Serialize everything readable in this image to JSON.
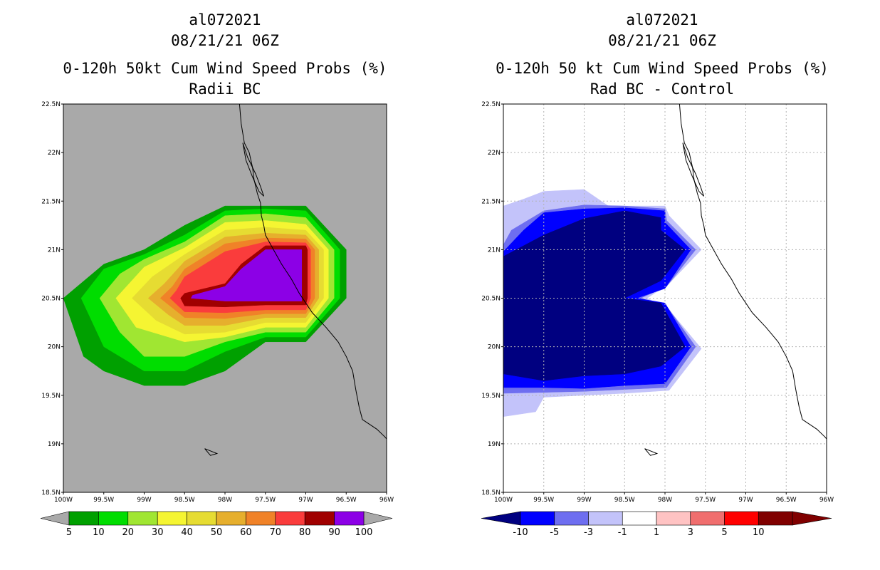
{
  "colors": {
    "land_background": "#a9a9a9",
    "coast": "#000000",
    "grid": "#b4b4b4",
    "prob_scale": [
      "#a9a9a9",
      "#00a000",
      "#00dd00",
      "#a0e632",
      "#f5f532",
      "#e6dc32",
      "#e6af2d",
      "#f08228",
      "#fa3c3c",
      "#a00000",
      "#8c00e6",
      "#a9a9a9"
    ],
    "diff_scale": [
      "#000080",
      "#0000ff",
      "#6e6ef0",
      "#c3c3fa",
      "#ffffff",
      "#ffc3c3",
      "#f06e6e",
      "#ff0000",
      "#800000"
    ]
  },
  "left_panel": {
    "storm_id": "al072021",
    "datetime": "08/21/21 06Z",
    "title": "0-120h 50kt Cum Wind Speed Probs (%)",
    "subtitle": "Radii BC"
  },
  "right_panel": {
    "storm_id": "al072021",
    "datetime": "08/21/21 06Z",
    "title": "0-120h 50 kt Cum Wind Speed Probs (%)",
    "subtitle": "Rad BC - Control"
  },
  "chart_data": [
    {
      "type": "heatmap",
      "title": "0-120h 50kt Cum Wind Speed Probs (%)",
      "subtitle": "Radii BC",
      "xlabel": "",
      "ylabel": "",
      "xlim": [
        -100,
        -96
      ],
      "ylim": [
        18.5,
        22.5
      ],
      "x_ticks": [
        "100W",
        "99.5W",
        "99W",
        "98.5W",
        "98W",
        "97.5W",
        "97W",
        "96.5W",
        "96W"
      ],
      "y_ticks": [
        "18.5N",
        "19N",
        "19.5N",
        "20N",
        "20.5N",
        "21N",
        "21.5N",
        "22N",
        "22.5N"
      ],
      "grid": false,
      "colorbar_levels": [
        5,
        10,
        20,
        30,
        40,
        50,
        60,
        70,
        80,
        90,
        100
      ],
      "colorbar_labels": [
        "5",
        "10",
        "20",
        "30",
        "40",
        "50",
        "60",
        "70",
        "80",
        "90",
        "100"
      ],
      "contour_bands": [
        {
          "min": 5,
          "polygon": [
            [
              -100.0,
              20.5
            ],
            [
              -99.75,
              19.9
            ],
            [
              -99.5,
              19.75
            ],
            [
              -99.0,
              19.6
            ],
            [
              -98.5,
              19.6
            ],
            [
              -98.0,
              19.75
            ],
            [
              -97.5,
              20.05
            ],
            [
              -97.0,
              20.05
            ],
            [
              -96.5,
              20.5
            ],
            [
              -96.5,
              21.0
            ],
            [
              -97.0,
              21.45
            ],
            [
              -97.5,
              21.45
            ],
            [
              -98.0,
              21.45
            ],
            [
              -98.5,
              21.25
            ],
            [
              -99.0,
              21.0
            ],
            [
              -99.5,
              20.85
            ]
          ]
        },
        {
          "min": 10,
          "polygon": [
            [
              -99.78,
              20.5
            ],
            [
              -99.5,
              20.0
            ],
            [
              -99.0,
              19.75
            ],
            [
              -98.5,
              19.75
            ],
            [
              -98.0,
              19.95
            ],
            [
              -97.5,
              20.1
            ],
            [
              -97.0,
              20.1
            ],
            [
              -96.58,
              20.5
            ],
            [
              -96.58,
              21.0
            ],
            [
              -97.0,
              21.4
            ],
            [
              -97.5,
              21.42
            ],
            [
              -98.0,
              21.4
            ],
            [
              -98.5,
              21.15
            ],
            [
              -99.0,
              20.95
            ],
            [
              -99.5,
              20.8
            ]
          ]
        },
        {
          "min": 20,
          "polygon": [
            [
              -99.55,
              20.5
            ],
            [
              -99.3,
              20.15
            ],
            [
              -99.0,
              19.9
            ],
            [
              -98.5,
              19.9
            ],
            [
              -98.0,
              20.05
            ],
            [
              -97.5,
              20.15
            ],
            [
              -97.0,
              20.15
            ],
            [
              -96.65,
              20.5
            ],
            [
              -96.65,
              21.0
            ],
            [
              -97.0,
              21.33
            ],
            [
              -97.5,
              21.37
            ],
            [
              -98.0,
              21.35
            ],
            [
              -98.5,
              21.08
            ],
            [
              -99.0,
              20.9
            ],
            [
              -99.3,
              20.75
            ]
          ]
        },
        {
          "min": 30,
          "polygon": [
            [
              -99.35,
              20.5
            ],
            [
              -99.1,
              20.2
            ],
            [
              -98.5,
              20.05
            ],
            [
              -98.0,
              20.1
            ],
            [
              -97.5,
              20.2
            ],
            [
              -97.0,
              20.2
            ],
            [
              -96.72,
              20.5
            ],
            [
              -96.72,
              21.0
            ],
            [
              -97.0,
              21.26
            ],
            [
              -97.5,
              21.3
            ],
            [
              -98.0,
              21.28
            ],
            [
              -98.5,
              21.02
            ],
            [
              -99.0,
              20.82
            ]
          ]
        },
        {
          "min": 40,
          "polygon": [
            [
              -99.15,
              20.5
            ],
            [
              -98.85,
              20.27
            ],
            [
              -98.5,
              20.13
            ],
            [
              -98.0,
              20.15
            ],
            [
              -97.5,
              20.25
            ],
            [
              -97.0,
              20.25
            ],
            [
              -96.78,
              20.5
            ],
            [
              -96.78,
              21.0
            ],
            [
              -97.0,
              21.2
            ],
            [
              -97.5,
              21.23
            ],
            [
              -98.0,
              21.2
            ],
            [
              -98.5,
              20.95
            ],
            [
              -98.9,
              20.72
            ]
          ]
        },
        {
          "min": 50,
          "polygon": [
            [
              -98.95,
              20.5
            ],
            [
              -98.7,
              20.33
            ],
            [
              -98.5,
              20.22
            ],
            [
              -98.0,
              20.22
            ],
            [
              -97.5,
              20.3
            ],
            [
              -97.0,
              20.3
            ],
            [
              -96.84,
              20.5
            ],
            [
              -96.84,
              21.0
            ],
            [
              -97.0,
              21.15
            ],
            [
              -97.5,
              21.17
            ],
            [
              -98.0,
              21.13
            ],
            [
              -98.5,
              20.88
            ],
            [
              -98.75,
              20.65
            ]
          ]
        },
        {
          "min": 60,
          "polygon": [
            [
              -98.8,
              20.5
            ],
            [
              -98.5,
              20.3
            ],
            [
              -98.0,
              20.29
            ],
            [
              -97.5,
              20.34
            ],
            [
              -97.0,
              20.34
            ],
            [
              -96.89,
              20.5
            ],
            [
              -96.89,
              21.0
            ],
            [
              -97.0,
              21.11
            ],
            [
              -97.5,
              21.12
            ],
            [
              -98.0,
              21.06
            ],
            [
              -98.5,
              20.8
            ],
            [
              -98.65,
              20.62
            ]
          ]
        },
        {
          "min": 70,
          "polygon": [
            [
              -98.68,
              20.5
            ],
            [
              -98.5,
              20.36
            ],
            [
              -98.0,
              20.35
            ],
            [
              -97.5,
              20.38
            ],
            [
              -97.0,
              20.38
            ],
            [
              -96.94,
              20.5
            ],
            [
              -96.94,
              21.0
            ],
            [
              -97.0,
              21.07
            ],
            [
              -97.5,
              21.08
            ],
            [
              -98.0,
              20.98
            ],
            [
              -98.5,
              20.72
            ],
            [
              -98.6,
              20.58
            ]
          ]
        },
        {
          "min": 80,
          "polygon": [
            [
              -98.55,
              20.5
            ],
            [
              -98.5,
              20.42
            ],
            [
              -98.0,
              20.41
            ],
            [
              -97.5,
              20.43
            ],
            [
              -97.0,
              20.43
            ],
            [
              -96.98,
              20.5
            ],
            [
              -96.98,
              21.0
            ],
            [
              -97.0,
              21.04
            ],
            [
              -97.5,
              21.04
            ],
            [
              -97.8,
              20.85
            ],
            [
              -98.0,
              20.65
            ],
            [
              -98.5,
              20.55
            ]
          ]
        },
        {
          "min": 90,
          "polygon": [
            [
              -98.42,
              20.5
            ],
            [
              -98.0,
              20.47
            ],
            [
              -97.5,
              20.47
            ],
            [
              -97.05,
              20.47
            ],
            [
              -97.05,
              21.0
            ],
            [
              -97.5,
              21.0
            ],
            [
              -97.8,
              20.8
            ],
            [
              -98.0,
              20.62
            ],
            [
              -98.4,
              20.53
            ]
          ]
        }
      ]
    },
    {
      "type": "heatmap",
      "title": "0-120h 50 kt Cum Wind Speed Probs (%)",
      "subtitle": "Rad BC - Control",
      "xlabel": "",
      "ylabel": "",
      "xlim": [
        -100,
        -96
      ],
      "ylim": [
        18.5,
        22.5
      ],
      "x_ticks": [
        "100W",
        "99.5W",
        "99W",
        "98.5W",
        "98W",
        "97.5W",
        "97W",
        "96.5W",
        "96W"
      ],
      "y_ticks": [
        "18.5N",
        "19N",
        "19.5N",
        "20N",
        "20.5N",
        "21N",
        "21.5N",
        "22N",
        "22.5N"
      ],
      "grid": true,
      "colorbar_levels": [
        -10,
        -5,
        -3,
        -1,
        1,
        3,
        5,
        10
      ],
      "colorbar_labels": [
        "-10",
        "-5",
        "-3",
        "-1",
        "1",
        "3",
        "5",
        "10"
      ],
      "contour_bands": [
        {
          "max": -1,
          "polygon": [
            [
              -100.0,
              21.45
            ],
            [
              -99.75,
              21.52
            ],
            [
              -99.5,
              21.6
            ],
            [
              -99.0,
              21.62
            ],
            [
              -98.7,
              21.45
            ],
            [
              -98.5,
              21.45
            ],
            [
              -98.0,
              21.45
            ],
            [
              -97.95,
              21.35
            ],
            [
              -97.55,
              21.0
            ],
            [
              -97.95,
              20.65
            ],
            [
              -98.22,
              20.5
            ],
            [
              -97.95,
              20.38
            ],
            [
              -97.55,
              19.98
            ],
            [
              -97.95,
              19.55
            ],
            [
              -98.5,
              19.52
            ],
            [
              -99.0,
              19.5
            ],
            [
              -99.5,
              19.48
            ],
            [
              -99.6,
              19.33
            ],
            [
              -100.0,
              19.28
            ]
          ]
        },
        {
          "max": -3,
          "polygon": [
            [
              -100.0,
              21.05
            ],
            [
              -99.9,
              21.2
            ],
            [
              -99.5,
              21.4
            ],
            [
              -99.0,
              21.46
            ],
            [
              -98.5,
              21.45
            ],
            [
              -98.0,
              21.42
            ],
            [
              -97.98,
              21.3
            ],
            [
              -97.62,
              21.0
            ],
            [
              -97.98,
              20.62
            ],
            [
              -98.3,
              20.5
            ],
            [
              -97.98,
              20.42
            ],
            [
              -97.62,
              20.0
            ],
            [
              -97.98,
              19.58
            ],
            [
              -98.5,
              19.56
            ],
            [
              -99.0,
              19.54
            ],
            [
              -99.5,
              19.53
            ],
            [
              -100.0,
              19.52
            ]
          ]
        },
        {
          "max": -5,
          "polygon": [
            [
              -100.0,
              20.98
            ],
            [
              -99.75,
              21.2
            ],
            [
              -99.5,
              21.38
            ],
            [
              -99.0,
              21.42
            ],
            [
              -98.5,
              21.43
            ],
            [
              -98.0,
              21.4
            ],
            [
              -98.0,
              21.28
            ],
            [
              -97.68,
              21.0
            ],
            [
              -98.0,
              20.6
            ],
            [
              -98.35,
              20.5
            ],
            [
              -98.0,
              20.45
            ],
            [
              -97.68,
              20.0
            ],
            [
              -98.0,
              19.62
            ],
            [
              -98.5,
              19.6
            ],
            [
              -99.0,
              19.57
            ],
            [
              -99.5,
              19.58
            ],
            [
              -100.0,
              19.58
            ]
          ]
        },
        {
          "max": -10,
          "polygon": [
            [
              -100.0,
              20.93
            ],
            [
              -99.5,
              21.15
            ],
            [
              -99.0,
              21.32
            ],
            [
              -98.5,
              21.4
            ],
            [
              -98.05,
              21.33
            ],
            [
              -98.05,
              21.2
            ],
            [
              -97.75,
              21.0
            ],
            [
              -98.05,
              20.68
            ],
            [
              -98.5,
              20.5
            ],
            [
              -98.05,
              20.45
            ],
            [
              -97.75,
              20.0
            ],
            [
              -98.05,
              19.8
            ],
            [
              -98.5,
              19.72
            ],
            [
              -99.0,
              19.7
            ],
            [
              -99.5,
              19.65
            ],
            [
              -100.0,
              19.72
            ]
          ]
        }
      ]
    }
  ],
  "coastline": [
    [
      -97.82,
      22.5
    ],
    [
      -97.8,
      22.3
    ],
    [
      -97.76,
      22.1
    ],
    [
      -97.7,
      22.0
    ],
    [
      -97.66,
      21.85
    ],
    [
      -97.64,
      21.72
    ],
    [
      -97.6,
      21.58
    ],
    [
      -97.56,
      21.48
    ],
    [
      -97.55,
      21.35
    ],
    [
      -97.52,
      21.25
    ],
    [
      -97.5,
      21.15
    ],
    [
      -97.4,
      21.0
    ],
    [
      -97.3,
      20.85
    ],
    [
      -97.18,
      20.7
    ],
    [
      -97.08,
      20.55
    ],
    [
      -96.92,
      20.35
    ],
    [
      -96.75,
      20.2
    ],
    [
      -96.6,
      20.05
    ],
    [
      -96.5,
      19.9
    ],
    [
      -96.42,
      19.75
    ],
    [
      -96.38,
      19.55
    ],
    [
      -96.34,
      19.38
    ],
    [
      -96.3,
      19.25
    ],
    [
      -96.12,
      19.15
    ],
    [
      -96.02,
      19.07
    ],
    [
      -96.0,
      19.05
    ]
  ],
  "laguna_loop": [
    [
      -97.78,
      22.1
    ],
    [
      -97.72,
      21.95
    ],
    [
      -97.62,
      21.78
    ],
    [
      -97.56,
      21.65
    ],
    [
      -97.52,
      21.55
    ],
    [
      -97.58,
      21.6
    ],
    [
      -97.66,
      21.75
    ],
    [
      -97.74,
      21.92
    ],
    [
      -97.78,
      22.1
    ]
  ],
  "island": [
    [
      -98.25,
      18.95
    ],
    [
      -98.1,
      18.9
    ],
    [
      -98.18,
      18.88
    ],
    [
      -98.25,
      18.95
    ]
  ]
}
